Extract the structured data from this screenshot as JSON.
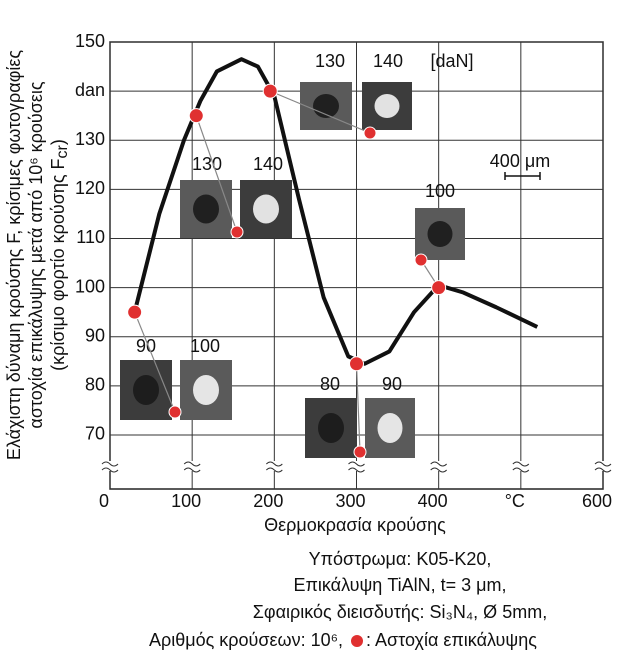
{
  "chart_data": {
    "type": "line",
    "ylabel_lines": [
      "Ελάχιστη δύναμη κρούσης  F, κρίσιμες φωτογραφίες",
      "αστοχία επικάλυψης μετά από 10⁶ κρούσεις",
      "(κρίσιμο φορτίο κρούσης F"
    ],
    "ylabel_sub": "cr",
    "ylabel_end": ")",
    "xlabel": "Θερμοκρασία κρούσης",
    "xlim": [
      0,
      600
    ],
    "xticks": [
      0,
      100,
      200,
      300,
      400,
      {
        "value": 500,
        "label": "°C"
      },
      600
    ],
    "ylim": [
      59,
      150
    ],
    "yticks": [
      70,
      80,
      90,
      100,
      110,
      120,
      130,
      {
        "value": 140,
        "label": "dan"
      },
      150
    ],
    "grid": true,
    "curve": {
      "color": "#111111",
      "x": [
        30,
        60,
        90,
        110,
        130,
        160,
        180,
        200,
        230,
        260,
        290,
        310,
        340,
        370,
        400,
        430,
        470,
        520
      ],
      "y": [
        95,
        115,
        130,
        138,
        144,
        146.5,
        145,
        139,
        118,
        98,
        86,
        84.5,
        87,
        95,
        100.5,
        99,
        96,
        92
      ]
    },
    "points": {
      "color": "#e03030",
      "x": [
        30,
        105,
        195,
        300,
        400
      ],
      "y": [
        95,
        135,
        140,
        84.5,
        100
      ]
    },
    "photo_labels": [
      "130",
      "140",
      "[daN]",
      "130",
      "140",
      "100",
      "90",
      "100",
      "80",
      "90"
    ],
    "scale_label": "400 μm",
    "notes": [
      "Υπόστρωμα: K05-K20,",
      "Επικάλυψη TiAlN, t= 3 μm,",
      "Σφαιρικός διεισδυτής: Si₃N₄, Ø 5mm,",
      "Αριθμός κρούσεων: 10⁶,"
    ],
    "legend_text": ": Αστοχία επικάλυψης"
  }
}
